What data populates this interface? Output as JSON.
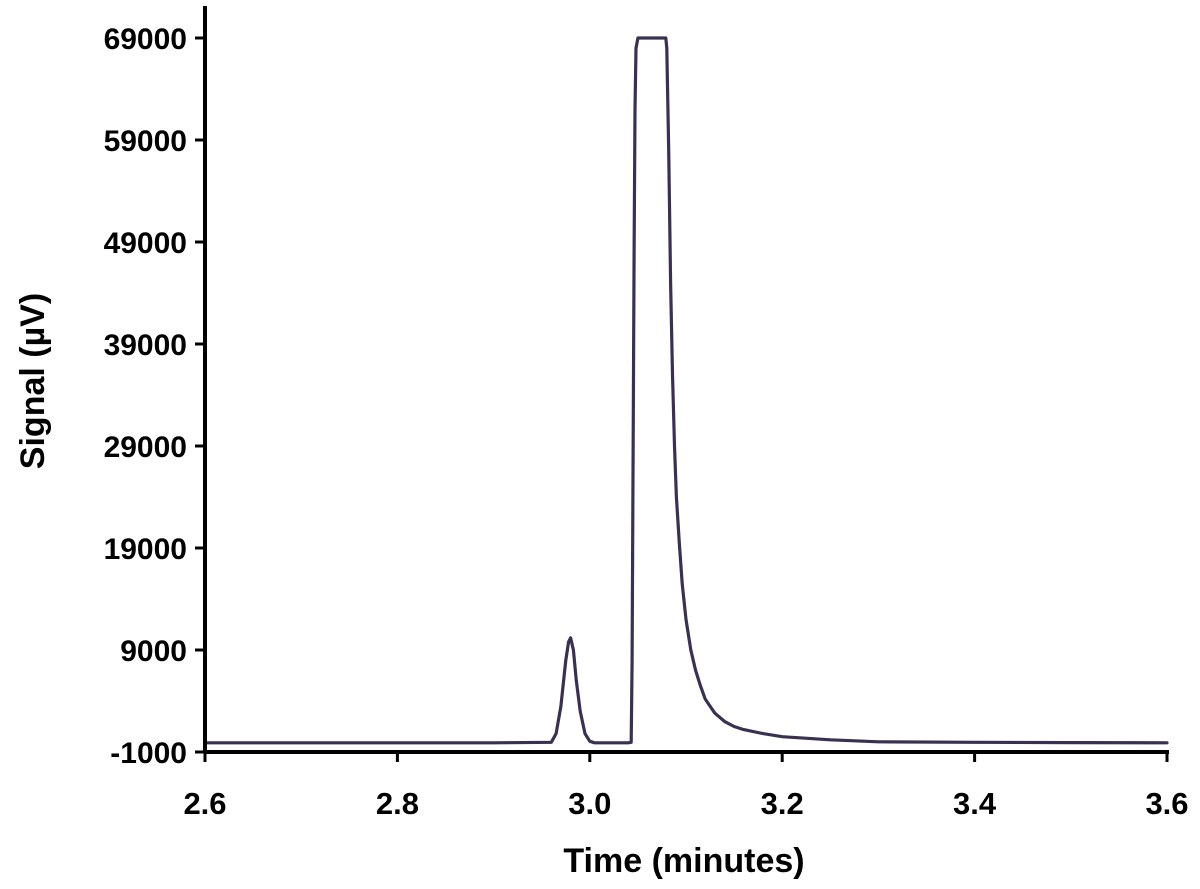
{
  "chart_data": {
    "type": "line",
    "title": "",
    "xlabel": "Time (minutes)",
    "ylabel": "Signal (µV)",
    "xlim": [
      2.6,
      3.6
    ],
    "ylim": [
      -1000,
      69000
    ],
    "x_ticks": [
      "2.6",
      "2.8",
      "3.0",
      "3.2",
      "3.4",
      "3.6"
    ],
    "x_tick_values": [
      2.6,
      2.8,
      3.0,
      3.2,
      3.4,
      3.6
    ],
    "y_ticks": [
      "-1000",
      "9000",
      "19000",
      "29000",
      "39000",
      "49000",
      "59000",
      "69000"
    ],
    "y_tick_values": [
      -1000,
      9000,
      19000,
      29000,
      39000,
      49000,
      59000,
      69000
    ],
    "grid": false,
    "legend": "none",
    "line_color": "#3a3150",
    "series": [
      {
        "x": [
          2.6,
          2.7,
          2.8,
          2.9,
          2.96,
          2.965,
          2.97,
          2.975,
          2.978,
          2.98,
          2.983,
          2.986,
          2.99,
          2.995,
          3.0,
          3.005,
          3.04,
          3.043,
          3.044,
          3.045,
          3.046,
          3.047,
          3.048,
          3.05,
          3.06,
          3.07,
          3.079,
          3.08,
          3.082,
          3.084,
          3.086,
          3.088,
          3.09,
          3.093,
          3.096,
          3.1,
          3.105,
          3.11,
          3.115,
          3.12,
          3.125,
          3.13,
          3.14,
          3.15,
          3.16,
          3.18,
          3.2,
          3.25,
          3.3,
          3.4,
          3.5,
          3.6
        ],
        "y": [
          -100,
          -100,
          -100,
          -100,
          -50,
          800,
          3500,
          8000,
          9800,
          10200,
          9000,
          6000,
          3000,
          800,
          50,
          -100,
          -100,
          -50,
          8000,
          28000,
          48000,
          62000,
          68000,
          69000,
          69000,
          69000,
          69000,
          68000,
          58000,
          45000,
          36000,
          29000,
          24000,
          19500,
          15500,
          12000,
          9000,
          7000,
          5500,
          4200,
          3500,
          2800,
          2000,
          1500,
          1200,
          800,
          500,
          200,
          0,
          -50,
          -80,
          -100
        ]
      }
    ]
  }
}
